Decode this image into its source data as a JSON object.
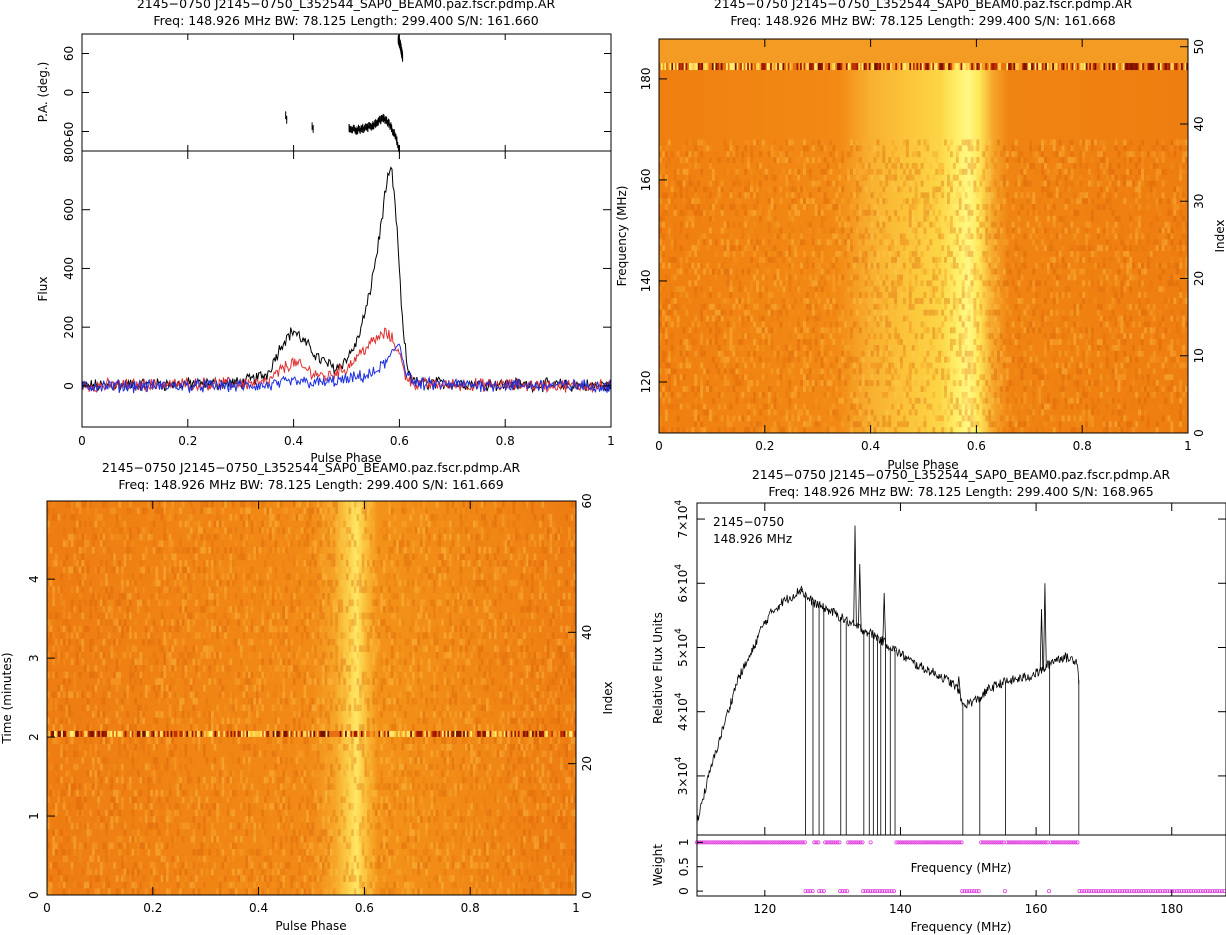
{
  "chart_data": [
    {
      "id": "profile",
      "type": "line",
      "title": "2145−0750  J2145−0750_L352544_SAP0_BEAM0.paz.fscr.pdmp.AR",
      "subtitle": "Freq:  148.926  MHz  BW:  78.125  Length:  299.400  S/N:  161.660",
      "xlabel": "Pulse Phase",
      "xlim": [
        0,
        1
      ],
      "x_ticks": [
        "0",
        "0.2",
        "0.4",
        "0.6",
        "0.8",
        "1"
      ],
      "upper_panel": {
        "ylabel": "P.A.  (deg.)",
        "ylim": [
          -90,
          90
        ],
        "y_ticks": [
          "-60",
          "0",
          "60"
        ],
        "y_tick_values": [
          -60,
          0,
          60
        ],
        "segments": [
          {
            "x": [
              0.385,
              0.387
            ],
            "y": [
              -35,
              -42
            ]
          },
          {
            "x": [
              0.435,
              0.437
            ],
            "y": [
              -52,
              -56
            ]
          },
          {
            "x": [
              0.505,
              0.52,
              0.53,
              0.54,
              0.55,
              0.555,
              0.56,
              0.565,
              0.57,
              0.575,
              0.58,
              0.585,
              0.59,
              0.595,
              0.6
            ],
            "y": [
              -55,
              -58,
              -56,
              -54,
              -50,
              -47,
              -45,
              -42,
              -40,
              -43,
              -48,
              -55,
              -62,
              -75,
              -88
            ]
          },
          {
            "x": [
              0.598,
              0.602,
              0.606
            ],
            "y": [
              82,
              72,
              55
            ]
          }
        ]
      },
      "lower_panel": {
        "ylabel": "Flux",
        "ylim": [
          -140,
          800
        ],
        "y_ticks": [
          "0",
          "200",
          "400",
          "600",
          "800"
        ],
        "y_tick_values": [
          0,
          200,
          400,
          600,
          800
        ],
        "series": [
          {
            "color": "#000000",
            "x": [
              0,
              0.3,
              0.35,
              0.38,
              0.4,
              0.42,
              0.45,
              0.48,
              0.5,
              0.52,
              0.54,
              0.56,
              0.575,
              0.585,
              0.595,
              0.605,
              0.615,
              0.63,
              1
            ],
            "y": [
              0,
              10,
              40,
              150,
              190,
              150,
              90,
              60,
              90,
              150,
              280,
              480,
              680,
              740,
              550,
              230,
              60,
              10,
              0
            ]
          },
          {
            "color": "#e03030",
            "x": [
              0,
              0.35,
              0.38,
              0.4,
              0.43,
              0.46,
              0.5,
              0.53,
              0.56,
              0.575,
              0.59,
              0.6,
              0.61,
              0.63,
              1
            ],
            "y": [
              0,
              10,
              60,
              80,
              50,
              30,
              60,
              120,
              165,
              180,
              150,
              110,
              40,
              5,
              0
            ]
          },
          {
            "color": "#2030e0",
            "x": [
              0,
              0.35,
              0.4,
              0.45,
              0.5,
              0.55,
              0.58,
              0.6,
              0.61,
              0.63,
              1
            ],
            "y": [
              0,
              0,
              15,
              10,
              20,
              40,
              90,
              150,
              60,
              5,
              0
            ]
          }
        ]
      }
    },
    {
      "id": "freq-phase",
      "type": "heatmap",
      "title": "2145−0750  J2145−0750_L352544_SAP0_BEAM0.paz.fscr.pdmp.AR",
      "subtitle": "Freq:  148.926  MHz  BW:  78.125  Length:  299.400  S/N:  161.668",
      "xlabel": "Pulse Phase",
      "ylabel": "Frequency (MHz)",
      "y2label": "Index",
      "xlim": [
        0,
        1
      ],
      "ylim": [
        109.9,
        187.9
      ],
      "x_ticks": [
        "0",
        "0.2",
        "0.4",
        "0.6",
        "0.8",
        "1"
      ],
      "y_ticks": [
        "120",
        "140",
        "160",
        "180"
      ],
      "y_tick_values": [
        120,
        140,
        160,
        180
      ],
      "y2_ticks": [
        "0",
        "10",
        "20",
        "30",
        "40",
        "50"
      ],
      "y2_tick_values": [
        0,
        10,
        20,
        30,
        40,
        50
      ],
      "y2lim": [
        0,
        51
      ],
      "pulse_center_phase": 0.585,
      "bright_band_freq": [
        108,
        168
      ],
      "striped_channel_index": 47.5
    },
    {
      "id": "time-phase",
      "type": "heatmap",
      "title": "2145−0750  J2145−0750_L352544_SAP0_BEAM0.paz.fscr.pdmp.AR",
      "subtitle": "Freq:  148.926  MHz  BW:  78.125  Length:  299.400  S/N:  161.669",
      "xlabel": "Pulse Phase",
      "ylabel": "Time  (minutes)",
      "y2label": "Index",
      "xlim": [
        0,
        1
      ],
      "ylim": [
        0,
        4.99
      ],
      "x_ticks": [
        "0",
        "0.2",
        "0.4",
        "0.6",
        "0.8",
        "1"
      ],
      "y_ticks": [
        "0",
        "1",
        "2",
        "3",
        "4"
      ],
      "y_tick_values": [
        0,
        1,
        2,
        3,
        4
      ],
      "y2_ticks": [
        "0",
        "20",
        "40",
        "60"
      ],
      "y2_tick_values": [
        0,
        20,
        40,
        60
      ],
      "y2lim": [
        0,
        60
      ],
      "pulse_center_phase": 0.585,
      "striped_time_min": 2.04
    },
    {
      "id": "bandpass",
      "type": "line",
      "title": "2145−0750  J2145−0750_L352544_SAP0_BEAM0.paz.fscr.pdmp.AR",
      "subtitle": "Freq:  148.926  MHz  BW:  78.125  Length:  299.400  S/N:  168.965",
      "annotation_lines": [
        "2145−0750",
        "148.926  MHz"
      ],
      "xlabel": "Frequency  (MHz)",
      "inner_xlabel": "Frequency  (MHz)",
      "ylabel": "Relative Flux Units",
      "weight_ylabel": "Weight",
      "xlim": [
        110,
        188
      ],
      "x_ticks": [
        "120",
        "140",
        "160",
        "180"
      ],
      "x_tick_values": [
        120,
        140,
        160,
        180
      ],
      "ylim": [
        20800,
        72500
      ],
      "y_ticks": [
        {
          "base": "3×10",
          "exp": "4",
          "value": 30000
        },
        {
          "base": "4×10",
          "exp": "4",
          "value": 40000
        },
        {
          "base": "5×10",
          "exp": "4",
          "value": 50000
        },
        {
          "base": "6×10",
          "exp": "4",
          "value": 60000
        },
        {
          "base": "7×10",
          "exp": "4",
          "value": 70000
        }
      ],
      "weight_ylim": [
        -0.1,
        1.15
      ],
      "weight_ticks": [
        "0",
        "0.5",
        "1"
      ],
      "weight_tick_values": [
        0,
        0.5,
        1
      ],
      "envelope": {
        "x": [
          110,
          112,
          114,
          116,
          118,
          119.5,
          121,
          122.5,
          124,
          125.3,
          126.5,
          128,
          130,
          131.5,
          133,
          134,
          136,
          138,
          140,
          142,
          144,
          146,
          147.5,
          148.5,
          149.2,
          151.6,
          153,
          155,
          157,
          159,
          161,
          162.5,
          164,
          166,
          166.3
        ],
        "y": [
          23000,
          31000,
          38000,
          45000,
          49000,
          53000,
          55500,
          57000,
          58000,
          59000,
          57500,
          56500,
          55500,
          54500,
          53500,
          53000,
          52000,
          50500,
          49000,
          47500,
          46500,
          45500,
          44500,
          43500,
          41000,
          42000,
          43500,
          44500,
          45000,
          45500,
          46500,
          48000,
          48500,
          48000,
          45000
        ]
      },
      "drops_to_floor_mhz": [
        126.0,
        127.1,
        128.0,
        128.7,
        131.2,
        132.0,
        134.6,
        135.4,
        136.0,
        136.6,
        137.1,
        137.8,
        138.5,
        139.2,
        149.2,
        151.7,
        155.5,
        162.0
      ],
      "spikes": [
        {
          "x": 125.4,
          "y": 59500
        },
        {
          "x": 133.3,
          "y": 69000
        },
        {
          "x": 134.0,
          "y": 63000
        },
        {
          "x": 137.6,
          "y": 58500
        },
        {
          "x": 148.6,
          "y": 45500
        },
        {
          "x": 160.8,
          "y": 56000
        },
        {
          "x": 161.3,
          "y": 60000
        }
      ],
      "weights_one_ranges": [
        [
          110,
          125.9
        ],
        [
          127.3,
          127.9
        ],
        [
          128.9,
          131
        ],
        [
          132.3,
          134.4
        ],
        [
          135.6,
          135.8
        ],
        [
          139.4,
          149
        ],
        [
          151.9,
          155.3
        ],
        [
          155.7,
          161.8
        ],
        [
          162.2,
          166.3
        ]
      ],
      "weights_zero_ranges": [
        [
          126,
          127.2
        ],
        [
          128,
          128.8
        ],
        [
          131.1,
          132.2
        ],
        [
          134.5,
          139.3
        ],
        [
          149.1,
          151.8
        ],
        [
          155.4,
          155.6
        ],
        [
          161.9,
          162.1
        ],
        [
          166.4,
          188
        ]
      ],
      "weight_marker_color": "#e040e0"
    }
  ]
}
